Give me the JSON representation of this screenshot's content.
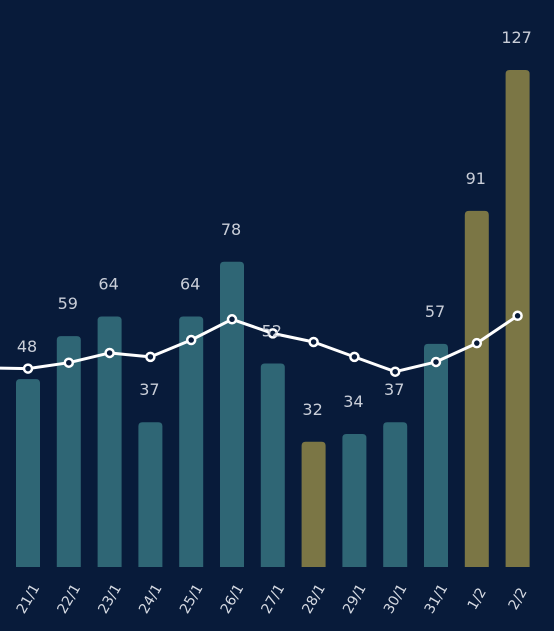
{
  "chart_data": {
    "type": "bar",
    "categories": [
      "21/1",
      "22/1",
      "23/1",
      "24/1",
      "25/1",
      "26/1",
      "27/1",
      "28/1",
      "29/1",
      "30/1",
      "31/1",
      "1/2",
      "2/2"
    ],
    "series": [
      {
        "type": "bar",
        "values": [
          48,
          59,
          64,
          37,
          64,
          78,
          52,
          32,
          34,
          37,
          57,
          91,
          127
        ],
        "colors": [
          "#2f6675",
          "#2f6675",
          "#2f6675",
          "#2f6675",
          "#2f6675",
          "#2f6675",
          "#2f6675",
          "#7b7645",
          "#2f6675",
          "#2f6675",
          "#2f6675",
          "#7b7645",
          "#7b7645"
        ]
      },
      {
        "type": "line",
        "values": [
          50.7,
          52.2,
          54.7,
          53.7,
          58.0,
          63.3,
          59.7,
          57.5,
          53.7,
          49.9,
          52.4,
          57.2,
          64.2
        ],
        "color": "#ffffff"
      }
    ],
    "data_labels": [
      "48",
      "59",
      "64",
      "37",
      "64",
      "78",
      "52",
      "32",
      "34",
      "37",
      "57",
      "91",
      "127"
    ],
    "ylim": [
      0,
      135
    ],
    "grid": false,
    "legend": "none",
    "background": "#081b3a"
  }
}
